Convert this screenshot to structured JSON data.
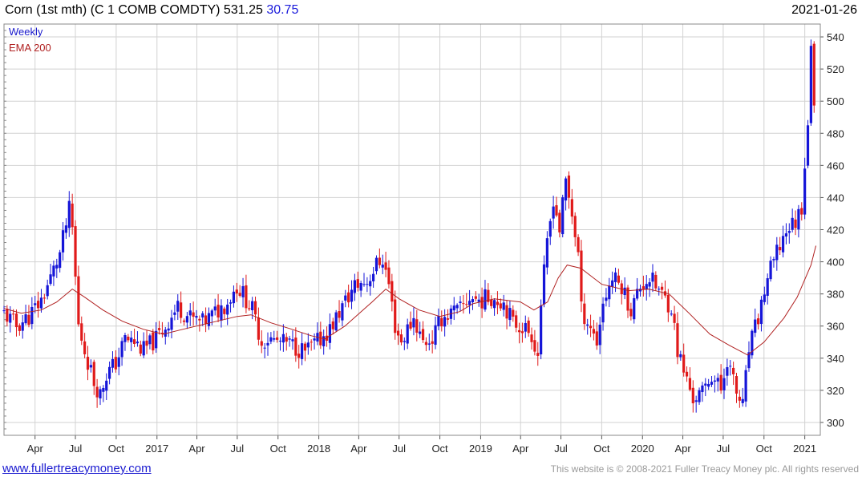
{
  "header": {
    "title": "Corn (1st mth) (C 1 COMB COMDTY)",
    "last": "531.25",
    "change": "30.75",
    "date": "2021-01-26"
  },
  "footer": {
    "link": "www.fullertreacymoney.com",
    "copyright": "This website is © 2008-2021 Fuller Treacy Money plc. All rights reserved"
  },
  "colors": {
    "up": "#1515d8",
    "down": "#e01a1a",
    "ema": "#b02020",
    "grid": "#d2d2d2",
    "legend_weekly": "#1a1acc",
    "legend_ema": "#b02020"
  },
  "chart_data": {
    "type": "candlestick",
    "title": "Corn (1st mth) (C 1 COMB COMDTY)",
    "frequency": "Weekly",
    "legend": [
      {
        "name": "Weekly",
        "color": "#1a1acc"
      },
      {
        "name": "EMA 200",
        "color": "#b02020"
      }
    ],
    "legend_placement": "top-left",
    "y_axis": {
      "position": "right",
      "ylim": [
        292,
        548
      ],
      "ticks": [
        300,
        320,
        340,
        360,
        380,
        400,
        420,
        440,
        460,
        480,
        500,
        520,
        540
      ]
    },
    "x_axis": {
      "start": "2016-01-22",
      "end": "2021-02-05",
      "ticks": [
        {
          "label": "Apr",
          "date": "2016-04-01"
        },
        {
          "label": "Jul",
          "date": "2016-07-01"
        },
        {
          "label": "Oct",
          "date": "2016-10-01"
        },
        {
          "label": "2017",
          "date": "2017-01-01"
        },
        {
          "label": "Apr",
          "date": "2017-04-01"
        },
        {
          "label": "Jul",
          "date": "2017-07-01"
        },
        {
          "label": "Oct",
          "date": "2017-10-01"
        },
        {
          "label": "2018",
          "date": "2018-01-01"
        },
        {
          "label": "Apr",
          "date": "2018-04-01"
        },
        {
          "label": "Jul",
          "date": "2018-07-01"
        },
        {
          "label": "Oct",
          "date": "2018-10-01"
        },
        {
          "label": "2019",
          "date": "2019-01-01"
        },
        {
          "label": "Apr",
          "date": "2019-04-01"
        },
        {
          "label": "Jul",
          "date": "2019-07-01"
        },
        {
          "label": "Oct",
          "date": "2019-10-01"
        },
        {
          "label": "2020",
          "date": "2020-01-01"
        },
        {
          "label": "Apr",
          "date": "2020-04-01"
        },
        {
          "label": "Jul",
          "date": "2020-07-01"
        },
        {
          "label": "Oct",
          "date": "2020-10-01"
        },
        {
          "label": "2021",
          "date": "2021-01-01"
        }
      ]
    },
    "grid": true,
    "close_path": [
      [
        "2016-01-22",
        368
      ],
      [
        "2016-02-19",
        360
      ],
      [
        "2016-03-18",
        366
      ],
      [
        "2016-04-15",
        376
      ],
      [
        "2016-05-06",
        390
      ],
      [
        "2016-05-27",
        405
      ],
      [
        "2016-06-17",
        432
      ],
      [
        "2016-06-24",
        420
      ],
      [
        "2016-07-08",
        360
      ],
      [
        "2016-07-22",
        345
      ],
      [
        "2016-08-12",
        325
      ],
      [
        "2016-08-26",
        318
      ],
      [
        "2016-09-09",
        330
      ],
      [
        "2016-09-30",
        337
      ],
      [
        "2016-10-21",
        352
      ],
      [
        "2016-11-11",
        350
      ],
      [
        "2016-12-02",
        345
      ],
      [
        "2016-12-30",
        352
      ],
      [
        "2017-01-20",
        360
      ],
      [
        "2017-02-17",
        372
      ],
      [
        "2017-03-17",
        365
      ],
      [
        "2017-04-14",
        362
      ],
      [
        "2017-05-12",
        368
      ],
      [
        "2017-06-09",
        375
      ],
      [
        "2017-06-30",
        385
      ],
      [
        "2017-07-14",
        380
      ],
      [
        "2017-08-04",
        370
      ],
      [
        "2017-08-25",
        350
      ],
      [
        "2017-09-08",
        352
      ],
      [
        "2017-10-06",
        350
      ],
      [
        "2017-11-03",
        348
      ],
      [
        "2017-12-01",
        344
      ],
      [
        "2017-12-29",
        350
      ],
      [
        "2018-01-26",
        358
      ],
      [
        "2018-02-23",
        372
      ],
      [
        "2018-03-23",
        385
      ],
      [
        "2018-04-20",
        388
      ],
      [
        "2018-05-11",
        398
      ],
      [
        "2018-05-25",
        402
      ],
      [
        "2018-06-08",
        386
      ],
      [
        "2018-06-22",
        360
      ],
      [
        "2018-07-06",
        350
      ],
      [
        "2018-07-20",
        358
      ],
      [
        "2018-08-03",
        365
      ],
      [
        "2018-08-24",
        350
      ],
      [
        "2018-09-14",
        352
      ],
      [
        "2018-10-05",
        365
      ],
      [
        "2018-10-26",
        368
      ],
      [
        "2018-11-16",
        370
      ],
      [
        "2018-12-07",
        378
      ],
      [
        "2018-12-28",
        376
      ],
      [
        "2019-01-25",
        378
      ],
      [
        "2019-02-22",
        375
      ],
      [
        "2019-03-15",
        362
      ],
      [
        "2019-04-05",
        360
      ],
      [
        "2019-04-26",
        355
      ],
      [
        "2019-05-10",
        342
      ],
      [
        "2019-05-17",
        375
      ],
      [
        "2019-05-31",
        410
      ],
      [
        "2019-06-14",
        440
      ],
      [
        "2019-06-28",
        420
      ],
      [
        "2019-07-12",
        450
      ],
      [
        "2019-07-26",
        430
      ],
      [
        "2019-08-09",
        405
      ],
      [
        "2019-08-16",
        370
      ],
      [
        "2019-09-06",
        360
      ],
      [
        "2019-09-20",
        350
      ],
      [
        "2019-10-04",
        375
      ],
      [
        "2019-10-25",
        390
      ],
      [
        "2019-11-15",
        385
      ],
      [
        "2019-12-06",
        370
      ],
      [
        "2019-12-27",
        385
      ],
      [
        "2020-01-17",
        390
      ],
      [
        "2020-02-07",
        382
      ],
      [
        "2020-03-06",
        372
      ],
      [
        "2020-03-20",
        345
      ],
      [
        "2020-04-03",
        332
      ],
      [
        "2020-04-24",
        315
      ],
      [
        "2020-05-15",
        318
      ],
      [
        "2020-06-05",
        330
      ],
      [
        "2020-06-26",
        320
      ],
      [
        "2020-07-10",
        340
      ],
      [
        "2020-07-31",
        318
      ],
      [
        "2020-08-14",
        310
      ],
      [
        "2020-08-28",
        345
      ],
      [
        "2020-09-18",
        365
      ],
      [
        "2020-10-09",
        390
      ],
      [
        "2020-10-30",
        405
      ],
      [
        "2020-11-20",
        420
      ],
      [
        "2020-12-11",
        425
      ],
      [
        "2020-12-25",
        435
      ],
      [
        "2021-01-08",
        488
      ],
      [
        "2021-01-15",
        530
      ],
      [
        "2021-01-22",
        502
      ],
      [
        "2021-01-26",
        531.25
      ]
    ],
    "ema_200": [
      [
        "2016-01-22",
        371
      ],
      [
        "2016-03-01",
        368
      ],
      [
        "2016-04-15",
        370
      ],
      [
        "2016-05-20",
        375
      ],
      [
        "2016-06-24",
        383
      ],
      [
        "2016-07-22",
        378
      ],
      [
        "2016-09-01",
        370
      ],
      [
        "2016-10-15",
        363
      ],
      [
        "2016-12-01",
        358
      ],
      [
        "2017-01-15",
        355
      ],
      [
        "2017-03-01",
        358
      ],
      [
        "2017-05-01",
        362
      ],
      [
        "2017-07-01",
        366
      ],
      [
        "2017-08-01",
        367
      ],
      [
        "2017-09-15",
        362
      ],
      [
        "2017-11-01",
        358
      ],
      [
        "2017-12-15",
        354
      ],
      [
        "2018-01-15",
        352
      ],
      [
        "2018-03-01",
        360
      ],
      [
        "2018-05-01",
        375
      ],
      [
        "2018-06-01",
        383
      ],
      [
        "2018-07-01",
        377
      ],
      [
        "2018-08-15",
        370
      ],
      [
        "2018-10-01",
        366
      ],
      [
        "2018-11-15",
        369
      ],
      [
        "2018-12-15",
        374
      ],
      [
        "2019-02-01",
        377
      ],
      [
        "2019-04-01",
        375
      ],
      [
        "2019-05-01",
        370
      ],
      [
        "2019-06-01",
        375
      ],
      [
        "2019-06-25",
        390
      ],
      [
        "2019-07-15",
        398
      ],
      [
        "2019-08-15",
        396
      ],
      [
        "2019-10-01",
        386
      ],
      [
        "2019-12-01",
        382
      ],
      [
        "2020-01-15",
        383
      ],
      [
        "2020-03-01",
        380
      ],
      [
        "2020-04-15",
        368
      ],
      [
        "2020-06-01",
        355
      ],
      [
        "2020-07-15",
        348
      ],
      [
        "2020-08-25",
        342
      ],
      [
        "2020-10-01",
        350
      ],
      [
        "2020-11-15",
        365
      ],
      [
        "2020-12-15",
        378
      ],
      [
        "2021-01-15",
        398
      ],
      [
        "2021-01-26",
        410
      ]
    ]
  }
}
